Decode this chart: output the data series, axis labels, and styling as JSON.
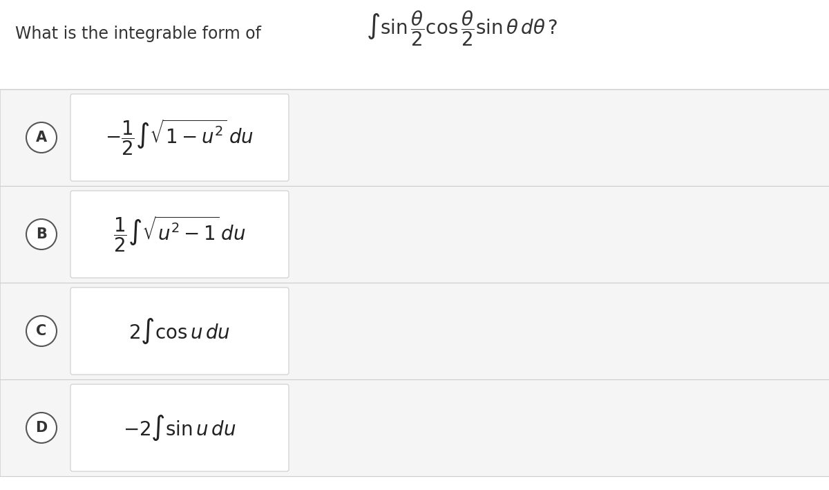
{
  "bg_color": "#ffffff",
  "answer_bg_color": "#f0f0f0",
  "border_color": "#cccccc",
  "question_text": "What is the integrable form of",
  "question_formula": "\\int \\sin\\frac{\\theta}{2}\\cos\\frac{\\theta}{2}\\sin\\theta\\, d\\theta\\,?",
  "options": [
    {
      "label": "A",
      "formula": "-\\dfrac{1}{2}\\int \\sqrt{1-u^2}\\, du"
    },
    {
      "label": "B",
      "formula": "\\dfrac{1}{2}\\int \\sqrt{u^2-1}\\, du"
    },
    {
      "label": "C",
      "formula": "2\\int \\cos u\\, du"
    },
    {
      "label": "D",
      "formula": "-2\\int \\sin u\\, du"
    }
  ],
  "fig_width": 12.0,
  "fig_height": 7.09,
  "dpi": 100
}
